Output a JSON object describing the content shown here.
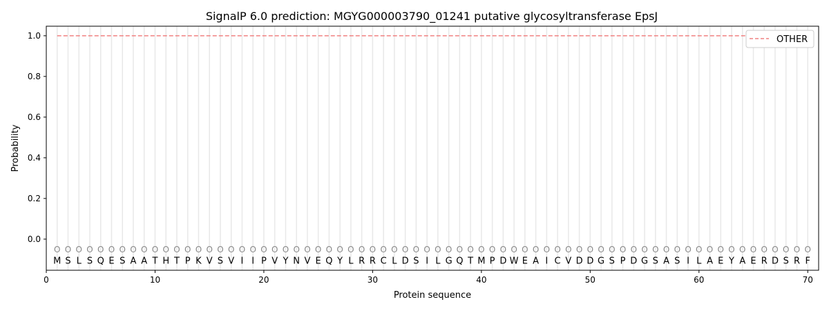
{
  "chart_data": {
    "type": "line",
    "title": "SignalP 6.0 prediction: MGYG000003790_01241 putative glycosyltransferase EpsJ",
    "xlabel": "Protein sequence",
    "ylabel": "Probability",
    "xlim": [
      0,
      71
    ],
    "ylim": [
      -0.153,
      1.047
    ],
    "xticks": [
      0,
      10,
      20,
      30,
      40,
      50,
      60,
      70
    ],
    "yticks": [
      0.0,
      0.2,
      0.4,
      0.6,
      0.8,
      1.0
    ],
    "grid": "vertical lines at each residue",
    "legend": "top-right",
    "sequence": "MSLSQESAATHTPKVSVIIPVYNVEQYLRRCLDSILGQTMPDWEAICVDDGSPDGSASILAEYAERDSRF",
    "marker_label": "O",
    "series": [
      {
        "name": "OTHER",
        "color": "#f08080",
        "style": "dashed",
        "x_range": [
          1,
          70
        ],
        "value": 1.0
      }
    ]
  }
}
